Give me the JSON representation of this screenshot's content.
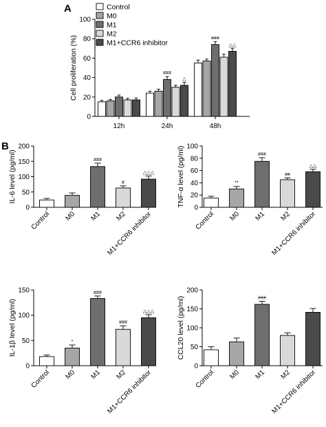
{
  "panels": [
    {
      "letter": "A"
    },
    {
      "letter": "B"
    }
  ],
  "chart_data": [
    {
      "type": "bar",
      "ylabel": "Cell proliferation (%)",
      "ylim": [
        0,
        100
      ],
      "yticks": [
        0,
        20,
        40,
        60,
        80,
        100
      ],
      "categories": [
        "12h",
        "24h",
        "48h"
      ],
      "legend_position": "top-left",
      "series": [
        {
          "name": "Control",
          "color": "#ffffff",
          "values": [
            15,
            24,
            55
          ],
          "errors": [
            1.5,
            2,
            3
          ],
          "marks": [
            "",
            "",
            ""
          ]
        },
        {
          "name": "M0",
          "color": "#a6a6a6",
          "values": [
            16,
            26,
            57
          ],
          "errors": [
            1.5,
            2,
            2
          ],
          "marks": [
            "",
            "",
            ""
          ]
        },
        {
          "name": "M1",
          "color": "#6e6e6e",
          "values": [
            20,
            38,
            74
          ],
          "errors": [
            2,
            3,
            3
          ],
          "marks": [
            "",
            "###",
            "###"
          ]
        },
        {
          "name": "M2",
          "color": "#d9d9d9",
          "values": [
            17,
            30,
            61
          ],
          "errors": [
            1.5,
            2,
            3
          ],
          "marks": [
            "",
            "",
            ""
          ]
        },
        {
          "name": "M1+CCR6 inhibitor",
          "color": "#4a4a4a",
          "values": [
            17,
            32,
            67
          ],
          "errors": [
            2,
            3,
            3
          ],
          "marks": [
            "",
            "△",
            "△△"
          ]
        }
      ]
    },
    {
      "type": "bar",
      "ylabel": "IL-6 level (pg/ml)",
      "ylim": [
        0,
        200
      ],
      "yticks": [
        0,
        50,
        100,
        150,
        200
      ],
      "categories": [
        "Control",
        "M0",
        "M1",
        "M2",
        "M1+CCR6 inhibitor"
      ],
      "colors": [
        "#ffffff",
        "#a6a6a6",
        "#6e6e6e",
        "#d9d9d9",
        "#4a4a4a"
      ],
      "values": [
        24,
        39,
        133,
        63,
        92
      ],
      "errors": [
        5,
        8,
        11,
        7,
        10
      ],
      "marks": [
        "",
        "",
        "###",
        "#",
        "△△△"
      ]
    },
    {
      "type": "bar",
      "ylabel": "TNF-α level (pg/ml)",
      "ylim": [
        0,
        100
      ],
      "yticks": [
        0,
        20,
        40,
        60,
        80,
        100
      ],
      "categories": [
        "Control",
        "M0",
        "M1",
        "M2",
        "M1+CCR6 inhibitor"
      ],
      "colors": [
        "#ffffff",
        "#a6a6a6",
        "#6e6e6e",
        "#d9d9d9",
        "#4a4a4a"
      ],
      "values": [
        15,
        30,
        75,
        45,
        58
      ],
      "errors": [
        3,
        4,
        6,
        3,
        4
      ],
      "marks": [
        "",
        "**",
        "###",
        "##",
        "△△"
      ]
    },
    {
      "type": "bar",
      "ylabel": "IL-1β level (pg/ml)",
      "ylim": [
        0,
        150
      ],
      "yticks": [
        0,
        50,
        100,
        150
      ],
      "categories": [
        "Control",
        "M0",
        "M1",
        "M2",
        "M1+CCR6 inhibitor"
      ],
      "colors": [
        "#ffffff",
        "#a6a6a6",
        "#6e6e6e",
        "#d9d9d9",
        "#4a4a4a"
      ],
      "values": [
        18,
        35,
        133,
        72,
        95
      ],
      "errors": [
        3,
        6,
        5,
        7,
        6
      ],
      "marks": [
        "",
        "*",
        "###",
        "###",
        "△△△"
      ]
    },
    {
      "type": "bar",
      "ylabel": "CCL20 level (pg/ml)",
      "ylim": [
        0,
        200
      ],
      "yticks": [
        0,
        50,
        100,
        150,
        200
      ],
      "categories": [
        "Control",
        "M0",
        "M1",
        "M2",
        "M1+CCR6 inhibitor"
      ],
      "colors": [
        "#ffffff",
        "#a6a6a6",
        "#6e6e6e",
        "#d9d9d9",
        "#4a4a4a"
      ],
      "values": [
        42,
        63,
        162,
        80,
        141
      ],
      "errors": [
        8,
        10,
        8,
        7,
        10
      ],
      "marks": [
        "",
        "",
        "###",
        "",
        ""
      ]
    }
  ]
}
